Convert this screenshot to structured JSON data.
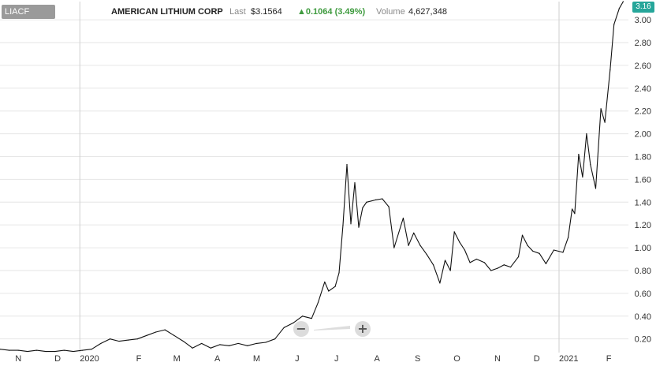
{
  "header": {
    "symbol": "LIACF",
    "company": "AMERICAN LITHIUM CORP",
    "last_label": "Last",
    "last_value": "$3.1564",
    "change": "▲0.1064 (3.49%)",
    "volume_label": "Volume",
    "volume_value": "4,627,348"
  },
  "current_price_tag": "3.16",
  "zoom": {
    "minus": "−",
    "plus": "+"
  },
  "colors": {
    "line": "#111111",
    "grid": "#e6e6e6",
    "year_divider": "#cfcfcf",
    "price_tag": "#26a69a",
    "change_up": "#3f9b3f"
  },
  "chart_data": {
    "type": "line",
    "title": "",
    "xlabel": "",
    "ylabel": "",
    "x_range": [
      "2019-11-01",
      "2021-02-23"
    ],
    "ylim": [
      0.08,
      3.16
    ],
    "y_ticks": [
      0.2,
      0.4,
      0.6,
      0.8,
      1.0,
      1.2,
      1.4,
      1.6,
      1.8,
      2.0,
      2.2,
      2.4,
      2.6,
      2.8,
      3.0
    ],
    "y_tick_labels": [
      "0.20",
      "0.40",
      "0.60",
      "0.80",
      "1.00",
      "1.20",
      "1.40",
      "1.60",
      "1.80",
      "2.00",
      "2.20",
      "2.40",
      "2.60",
      "2.80",
      "3.00"
    ],
    "x_ticks": [
      {
        "date": "2019-11-15",
        "label": "N"
      },
      {
        "date": "2019-12-15",
        "label": "D"
      },
      {
        "date": "2020-01-01",
        "label": "2020",
        "year": true
      },
      {
        "date": "2020-02-15",
        "label": "F"
      },
      {
        "date": "2020-03-15",
        "label": "M"
      },
      {
        "date": "2020-04-15",
        "label": "A"
      },
      {
        "date": "2020-05-15",
        "label": "M"
      },
      {
        "date": "2020-06-15",
        "label": "J"
      },
      {
        "date": "2020-07-15",
        "label": "J"
      },
      {
        "date": "2020-08-15",
        "label": "A"
      },
      {
        "date": "2020-09-15",
        "label": "S"
      },
      {
        "date": "2020-10-15",
        "label": "O"
      },
      {
        "date": "2020-11-15",
        "label": "N"
      },
      {
        "date": "2020-12-15",
        "label": "D"
      },
      {
        "date": "2021-01-01",
        "label": "2021",
        "year": true
      },
      {
        "date": "2021-02-08",
        "label": "F"
      }
    ],
    "grid": true,
    "series": [
      {
        "name": "LIACF",
        "points": [
          [
            "2019-11-01",
            0.11
          ],
          [
            "2019-11-08",
            0.1
          ],
          [
            "2019-11-15",
            0.1
          ],
          [
            "2019-11-22",
            0.09
          ],
          [
            "2019-11-29",
            0.1
          ],
          [
            "2019-12-06",
            0.09
          ],
          [
            "2019-12-13",
            0.09
          ],
          [
            "2019-12-20",
            0.1
          ],
          [
            "2019-12-27",
            0.09
          ],
          [
            "2020-01-03",
            0.1
          ],
          [
            "2020-01-10",
            0.11
          ],
          [
            "2020-01-17",
            0.16
          ],
          [
            "2020-01-24",
            0.2
          ],
          [
            "2020-01-31",
            0.18
          ],
          [
            "2020-02-07",
            0.19
          ],
          [
            "2020-02-14",
            0.2
          ],
          [
            "2020-02-21",
            0.23
          ],
          [
            "2020-02-28",
            0.26
          ],
          [
            "2020-03-06",
            0.28
          ],
          [
            "2020-03-13",
            0.23
          ],
          [
            "2020-03-20",
            0.18
          ],
          [
            "2020-03-27",
            0.12
          ],
          [
            "2020-04-03",
            0.16
          ],
          [
            "2020-04-10",
            0.12
          ],
          [
            "2020-04-17",
            0.15
          ],
          [
            "2020-04-24",
            0.14
          ],
          [
            "2020-05-01",
            0.16
          ],
          [
            "2020-05-08",
            0.14
          ],
          [
            "2020-05-15",
            0.16
          ],
          [
            "2020-05-22",
            0.17
          ],
          [
            "2020-05-29",
            0.2
          ],
          [
            "2020-06-05",
            0.3
          ],
          [
            "2020-06-12",
            0.34
          ],
          [
            "2020-06-19",
            0.4
          ],
          [
            "2020-06-26",
            0.38
          ],
          [
            "2020-07-01",
            0.52
          ],
          [
            "2020-07-06",
            0.7
          ],
          [
            "2020-07-09",
            0.62
          ],
          [
            "2020-07-14",
            0.66
          ],
          [
            "2020-07-17",
            0.78
          ],
          [
            "2020-07-20",
            1.2
          ],
          [
            "2020-07-23",
            1.73
          ],
          [
            "2020-07-26",
            1.21
          ],
          [
            "2020-07-29",
            1.57
          ],
          [
            "2020-08-01",
            1.18
          ],
          [
            "2020-08-04",
            1.35
          ],
          [
            "2020-08-07",
            1.4
          ],
          [
            "2020-08-14",
            1.42
          ],
          [
            "2020-08-19",
            1.43
          ],
          [
            "2020-08-24",
            1.36
          ],
          [
            "2020-08-28",
            1.0
          ],
          [
            "2020-09-04",
            1.26
          ],
          [
            "2020-09-08",
            1.02
          ],
          [
            "2020-09-12",
            1.13
          ],
          [
            "2020-09-17",
            1.02
          ],
          [
            "2020-09-22",
            0.94
          ],
          [
            "2020-09-27",
            0.85
          ],
          [
            "2020-10-02",
            0.69
          ],
          [
            "2020-10-06",
            0.89
          ],
          [
            "2020-10-10",
            0.8
          ],
          [
            "2020-10-13",
            1.14
          ],
          [
            "2020-10-17",
            1.05
          ],
          [
            "2020-10-21",
            0.98
          ],
          [
            "2020-10-25",
            0.87
          ],
          [
            "2020-10-30",
            0.9
          ],
          [
            "2020-11-05",
            0.87
          ],
          [
            "2020-11-10",
            0.8
          ],
          [
            "2020-11-15",
            0.82
          ],
          [
            "2020-11-20",
            0.85
          ],
          [
            "2020-11-25",
            0.83
          ],
          [
            "2020-12-01",
            0.92
          ],
          [
            "2020-12-04",
            1.11
          ],
          [
            "2020-12-08",
            1.02
          ],
          [
            "2020-12-12",
            0.97
          ],
          [
            "2020-12-17",
            0.95
          ],
          [
            "2020-12-22",
            0.86
          ],
          [
            "2020-12-28",
            0.98
          ],
          [
            "2021-01-04",
            0.96
          ],
          [
            "2021-01-08",
            1.09
          ],
          [
            "2021-01-11",
            1.34
          ],
          [
            "2021-01-13",
            1.3
          ],
          [
            "2021-01-16",
            1.82
          ],
          [
            "2021-01-19",
            1.62
          ],
          [
            "2021-01-22",
            2.0
          ],
          [
            "2021-01-25",
            1.73
          ],
          [
            "2021-01-29",
            1.52
          ],
          [
            "2021-02-02",
            2.22
          ],
          [
            "2021-02-05",
            2.1
          ],
          [
            "2021-02-09",
            2.56
          ],
          [
            "2021-02-12",
            2.96
          ],
          [
            "2021-02-16",
            3.1
          ],
          [
            "2021-02-19",
            3.16
          ]
        ]
      }
    ]
  }
}
